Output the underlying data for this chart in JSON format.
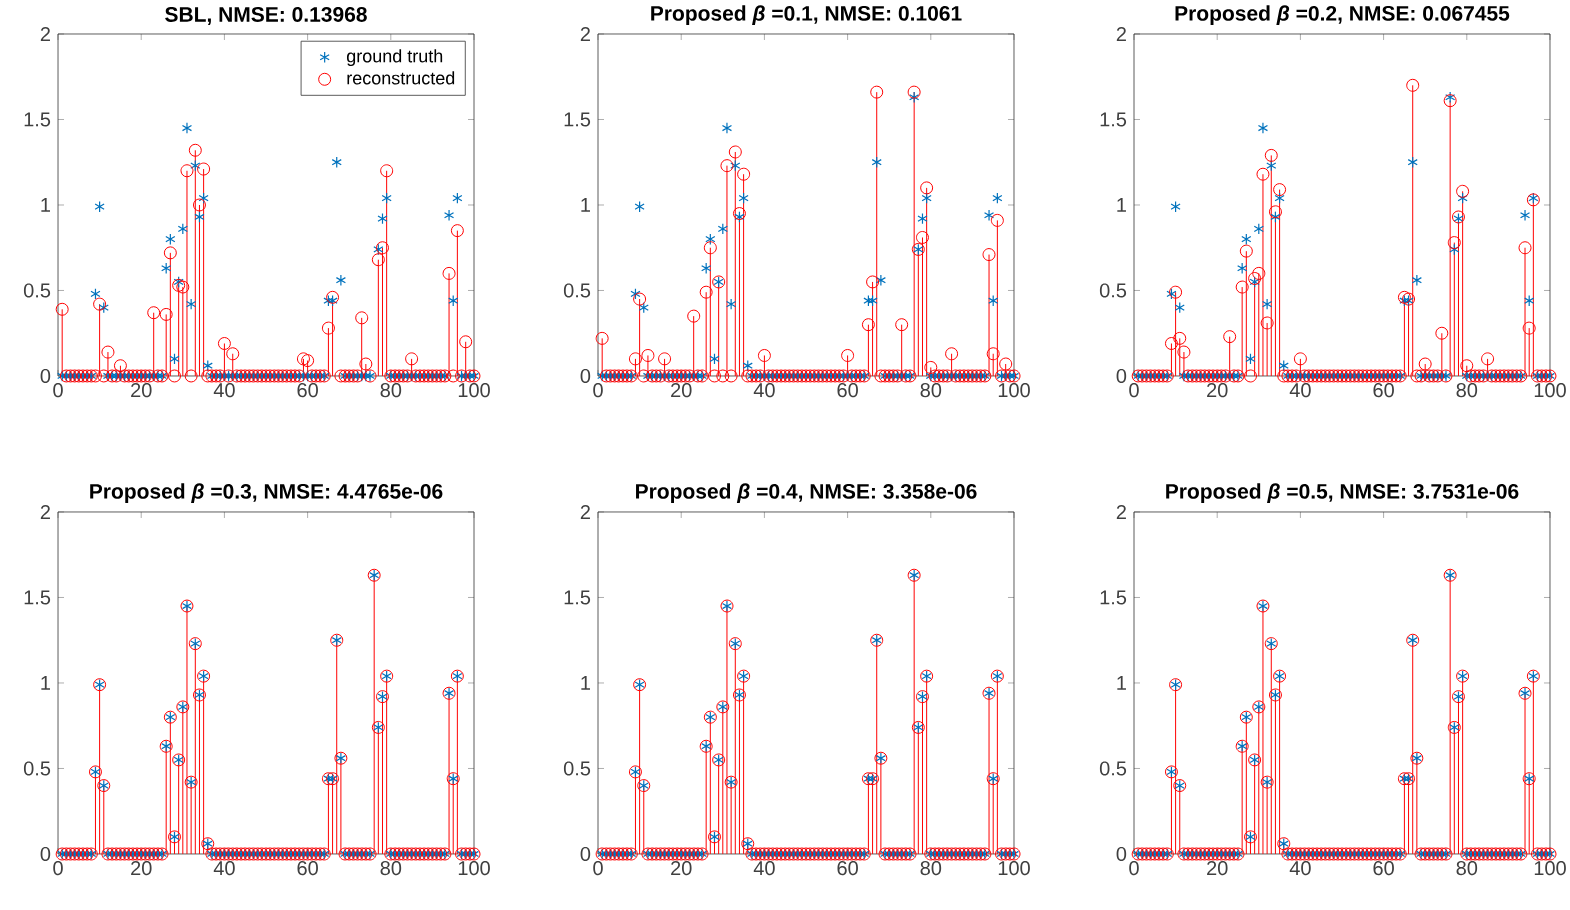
{
  "chart_data": [
    {
      "type": "scatter",
      "title": "**SBL, NMSE: 0.13968**",
      "legend": "top right",
      "xlim": [
        0,
        100
      ],
      "xticks": [
        0,
        20,
        40,
        60,
        80,
        100
      ],
      "ylim": [
        0,
        2
      ],
      "yticks": [
        0,
        0.5,
        1,
        1.5,
        2
      ],
      "x": [
        1,
        2,
        3,
        4,
        5,
        6,
        7,
        8,
        9,
        10,
        11,
        12,
        13,
        14,
        15,
        16,
        17,
        18,
        19,
        20,
        21,
        22,
        23,
        24,
        25,
        26,
        27,
        28,
        29,
        30,
        31,
        32,
        33,
        34,
        35,
        36,
        37,
        38,
        39,
        40,
        41,
        42,
        43,
        44,
        45,
        46,
        47,
        48,
        49,
        50,
        51,
        52,
        53,
        54,
        55,
        56,
        57,
        58,
        59,
        60,
        61,
        62,
        63,
        64,
        65,
        66,
        67,
        68,
        69,
        70,
        71,
        72,
        73,
        74,
        75,
        76,
        77,
        78,
        79,
        80,
        81,
        82,
        83,
        84,
        85,
        86,
        87,
        88,
        89,
        90,
        91,
        92,
        93,
        94,
        95,
        96,
        97,
        98,
        99,
        100
      ],
      "series": [
        {
          "name": "ground truth",
          "type": "scatter",
          "marker": "cross",
          "color": "#0072bd",
          "values": [
            0,
            0,
            0,
            0,
            0,
            0,
            0,
            0,
            0.48,
            0.99,
            0.4,
            0,
            0,
            0,
            0,
            0,
            0,
            0,
            0,
            0,
            0,
            0,
            0,
            0,
            0,
            0.63,
            0.8,
            0.1,
            0.55,
            0.86,
            1.45,
            0.42,
            1.23,
            0.93,
            1.04,
            0.06,
            0,
            0,
            0,
            0,
            0,
            0,
            0,
            0,
            0,
            0,
            0,
            0,
            0,
            0,
            0,
            0,
            0,
            0,
            0,
            0,
            0,
            0,
            0,
            0,
            0,
            0,
            0,
            0,
            0.44,
            0.44,
            1.25,
            0.56,
            0,
            0,
            0,
            0,
            0,
            0,
            0,
            null,
            0.74,
            0.92,
            1.04,
            0,
            0,
            0,
            0,
            0,
            0,
            0,
            0,
            0,
            0,
            0,
            0,
            0,
            0,
            0.94,
            0.44,
            1.04,
            0,
            0,
            0,
            0
          ]
        },
        {
          "name": "reconstructed",
          "type": "lollipop",
          "marker": "circle",
          "color": "#ff0000",
          "values": [
            0.39,
            0,
            0,
            0,
            0,
            0,
            0,
            0,
            0,
            0.42,
            0,
            0.14,
            0,
            0,
            0.06,
            0,
            0,
            0,
            0,
            0,
            0,
            0,
            0.37,
            0,
            0,
            0.36,
            0.72,
            0,
            0.53,
            0.52,
            1.2,
            0,
            1.32,
            1.0,
            1.21,
            0,
            0,
            0,
            0,
            0.19,
            0,
            0.13,
            0,
            0,
            0,
            0,
            0,
            0,
            0,
            0,
            0,
            0,
            0,
            0,
            0,
            0,
            0,
            0,
            0.1,
            0.09,
            0,
            0,
            0,
            0,
            0.28,
            0.46,
            null,
            0,
            0,
            0,
            0,
            0,
            0.34,
            0.07,
            0,
            null,
            0.68,
            0.75,
            1.2,
            0,
            0,
            0,
            0,
            0,
            0.1,
            0,
            0,
            0,
            0,
            0,
            0,
            0,
            0,
            0.6,
            0,
            0.85,
            0,
            0.2,
            0,
            0
          ]
        }
      ]
    },
    {
      "type": "scatter",
      "title": "**Proposed *β* =0.1, NMSE: 0.1061**",
      "xlim": [
        0,
        100
      ],
      "xticks": [
        0,
        20,
        40,
        60,
        80,
        100
      ],
      "ylim": [
        0,
        2
      ],
      "yticks": [
        0,
        0.5,
        1,
        1.5,
        2
      ],
      "x": [
        1,
        2,
        3,
        4,
        5,
        6,
        7,
        8,
        9,
        10,
        11,
        12,
        13,
        14,
        15,
        16,
        17,
        18,
        19,
        20,
        21,
        22,
        23,
        24,
        25,
        26,
        27,
        28,
        29,
        30,
        31,
        32,
        33,
        34,
        35,
        36,
        37,
        38,
        39,
        40,
        41,
        42,
        43,
        44,
        45,
        46,
        47,
        48,
        49,
        50,
        51,
        52,
        53,
        54,
        55,
        56,
        57,
        58,
        59,
        60,
        61,
        62,
        63,
        64,
        65,
        66,
        67,
        68,
        69,
        70,
        71,
        72,
        73,
        74,
        75,
        76,
        77,
        78,
        79,
        80,
        81,
        82,
        83,
        84,
        85,
        86,
        87,
        88,
        89,
        90,
        91,
        92,
        93,
        94,
        95,
        96,
        97,
        98,
        99,
        100
      ],
      "series": [
        {
          "type": "scatter",
          "marker": "cross",
          "color": "#0072bd",
          "values": [
            0,
            0,
            0,
            0,
            0,
            0,
            0,
            0,
            0.48,
            0.99,
            0.4,
            0,
            0,
            0,
            0,
            0,
            0,
            0,
            0,
            0,
            0,
            0,
            0,
            0,
            0,
            0.63,
            0.8,
            0.1,
            0.55,
            0.86,
            1.45,
            0.42,
            1.23,
            0.93,
            1.04,
            0.06,
            0,
            0,
            0,
            0,
            0,
            0,
            0,
            0,
            0,
            0,
            0,
            0,
            0,
            0,
            0,
            0,
            0,
            0,
            0,
            0,
            0,
            0,
            0,
            0,
            0,
            0,
            0,
            0,
            0.44,
            0.44,
            1.25,
            0.56,
            0,
            0,
            0,
            0,
            0,
            0,
            0,
            1.63,
            0.74,
            0.92,
            1.04,
            0,
            0,
            0,
            0,
            0,
            0,
            0,
            0,
            0,
            0,
            0,
            0,
            0,
            0,
            0.94,
            0.44,
            1.04,
            0,
            0,
            0,
            0
          ]
        },
        {
          "type": "lollipop",
          "marker": "circle",
          "color": "#ff0000",
          "values": [
            0.22,
            0,
            0,
            0,
            0,
            0,
            0,
            0,
            0.1,
            0.45,
            0,
            0.12,
            0,
            0,
            0,
            0.1,
            0,
            0,
            0,
            0,
            0,
            0,
            0.35,
            0,
            0,
            0.49,
            0.75,
            0,
            0.55,
            0,
            1.23,
            0,
            1.31,
            0.95,
            1.18,
            0,
            0,
            0,
            0,
            0.12,
            0,
            0,
            0,
            0,
            0,
            0,
            0,
            0,
            0,
            0,
            0,
            0,
            0,
            0,
            0,
            0,
            0,
            0,
            0,
            0.12,
            0,
            0,
            0,
            0,
            0.3,
            0.55,
            1.66,
            0,
            0,
            0,
            0,
            0,
            0.3,
            0,
            0,
            1.66,
            0.74,
            0.81,
            1.1,
            0.05,
            0,
            0,
            0,
            0,
            0.13,
            0,
            0,
            0,
            0,
            0,
            0,
            0,
            0,
            0.71,
            0.13,
            0.91,
            0,
            0.07,
            0,
            0
          ]
        }
      ]
    },
    {
      "type": "scatter",
      "title": "**Proposed *β* =0.2, NMSE: 0.067455**",
      "xlim": [
        0,
        100
      ],
      "xticks": [
        0,
        20,
        40,
        60,
        80,
        100
      ],
      "ylim": [
        0,
        2
      ],
      "yticks": [
        0,
        0.5,
        1,
        1.5,
        2
      ],
      "x": [
        1,
        2,
        3,
        4,
        5,
        6,
        7,
        8,
        9,
        10,
        11,
        12,
        13,
        14,
        15,
        16,
        17,
        18,
        19,
        20,
        21,
        22,
        23,
        24,
        25,
        26,
        27,
        28,
        29,
        30,
        31,
        32,
        33,
        34,
        35,
        36,
        37,
        38,
        39,
        40,
        41,
        42,
        43,
        44,
        45,
        46,
        47,
        48,
        49,
        50,
        51,
        52,
        53,
        54,
        55,
        56,
        57,
        58,
        59,
        60,
        61,
        62,
        63,
        64,
        65,
        66,
        67,
        68,
        69,
        70,
        71,
        72,
        73,
        74,
        75,
        76,
        77,
        78,
        79,
        80,
        81,
        82,
        83,
        84,
        85,
        86,
        87,
        88,
        89,
        90,
        91,
        92,
        93,
        94,
        95,
        96,
        97,
        98,
        99,
        100
      ],
      "series": [
        {
          "type": "scatter",
          "marker": "cross",
          "color": "#0072bd",
          "values": [
            0,
            0,
            0,
            0,
            0,
            0,
            0,
            0,
            0.48,
            0.99,
            0.4,
            0,
            0,
            0,
            0,
            0,
            0,
            0,
            0,
            0,
            0,
            0,
            0,
            0,
            0,
            0.63,
            0.8,
            0.1,
            0.55,
            0.86,
            1.45,
            0.42,
            1.23,
            0.93,
            1.04,
            0.06,
            0,
            0,
            0,
            0,
            0,
            0,
            0,
            0,
            0,
            0,
            0,
            0,
            0,
            0,
            0,
            0,
            0,
            0,
            0,
            0,
            0,
            0,
            0,
            0,
            0,
            0,
            0,
            0,
            0.44,
            0.44,
            1.25,
            0.56,
            0,
            0,
            0,
            0,
            0,
            0,
            0,
            1.63,
            0.74,
            0.92,
            1.04,
            0,
            0,
            0,
            0,
            0,
            0,
            0,
            0,
            0,
            0,
            0,
            0,
            0,
            0,
            0.94,
            0.44,
            1.04,
            0,
            0,
            0,
            0
          ]
        },
        {
          "type": "lollipop",
          "marker": "circle",
          "color": "#ff0000",
          "values": [
            0,
            0,
            0,
            0,
            0,
            0,
            0,
            0,
            0.19,
            0.49,
            0.22,
            0.14,
            0,
            0,
            0,
            0,
            0,
            0,
            0,
            0,
            0,
            0,
            0.23,
            0,
            0,
            0.52,
            0.73,
            0,
            0.57,
            0.6,
            1.18,
            0.31,
            1.29,
            0.96,
            1.09,
            0,
            0,
            0,
            0,
            0.1,
            0,
            0,
            0,
            0,
            0,
            0,
            0,
            0,
            0,
            0,
            0,
            0,
            0,
            0,
            0,
            0,
            0,
            0,
            0,
            0,
            0,
            0,
            0,
            0,
            0.46,
            0.45,
            1.7,
            0,
            0,
            0.07,
            0,
            0,
            0,
            0.25,
            0,
            1.61,
            0.78,
            0.93,
            1.08,
            0.06,
            0,
            0,
            0,
            0,
            0.1,
            0,
            0,
            0,
            0,
            0,
            0,
            0,
            0,
            0.75,
            0.28,
            1.03,
            0,
            0,
            0,
            0
          ]
        }
      ]
    },
    {
      "type": "scatter",
      "title": "**Proposed *β* =0.3, NMSE: 4.4765e-06**",
      "xlim": [
        0,
        100
      ],
      "xticks": [
        0,
        20,
        40,
        60,
        80,
        100
      ],
      "ylim": [
        0,
        2
      ],
      "yticks": [
        0,
        0.5,
        1,
        1.5,
        2
      ],
      "x": [
        1,
        2,
        3,
        4,
        5,
        6,
        7,
        8,
        9,
        10,
        11,
        12,
        13,
        14,
        15,
        16,
        17,
        18,
        19,
        20,
        21,
        22,
        23,
        24,
        25,
        26,
        27,
        28,
        29,
        30,
        31,
        32,
        33,
        34,
        35,
        36,
        37,
        38,
        39,
        40,
        41,
        42,
        43,
        44,
        45,
        46,
        47,
        48,
        49,
        50,
        51,
        52,
        53,
        54,
        55,
        56,
        57,
        58,
        59,
        60,
        61,
        62,
        63,
        64,
        65,
        66,
        67,
        68,
        69,
        70,
        71,
        72,
        73,
        74,
        75,
        76,
        77,
        78,
        79,
        80,
        81,
        82,
        83,
        84,
        85,
        86,
        87,
        88,
        89,
        90,
        91,
        92,
        93,
        94,
        95,
        96,
        97,
        98,
        99,
        100
      ],
      "series": [
        {
          "type": "scatter",
          "marker": "cross",
          "color": "#0072bd",
          "values": [
            0,
            0,
            0,
            0,
            0,
            0,
            0,
            0,
            0.48,
            0.99,
            0.4,
            0,
            0,
            0,
            0,
            0,
            0,
            0,
            0,
            0,
            0,
            0,
            0,
            0,
            0,
            0.63,
            0.8,
            0.1,
            0.55,
            0.86,
            1.45,
            0.42,
            1.23,
            0.93,
            1.04,
            0.06,
            0,
            0,
            0,
            0,
            0,
            0,
            0,
            0,
            0,
            0,
            0,
            0,
            0,
            0,
            0,
            0,
            0,
            0,
            0,
            0,
            0,
            0,
            0,
            0,
            0,
            0,
            0,
            0,
            0.44,
            0.44,
            1.25,
            0.56,
            0,
            0,
            0,
            0,
            0,
            0,
            0,
            1.63,
            0.74,
            0.92,
            1.04,
            0,
            0,
            0,
            0,
            0,
            0,
            0,
            0,
            0,
            0,
            0,
            0,
            0,
            0,
            0.94,
            0.44,
            1.04,
            0,
            0,
            0,
            0
          ]
        },
        {
          "type": "lollipop",
          "marker": "circle",
          "color": "#ff0000",
          "values": [
            0,
            0,
            0,
            0,
            0,
            0,
            0,
            0,
            0.48,
            0.99,
            0.4,
            0,
            0,
            0,
            0,
            0,
            0,
            0,
            0,
            0,
            0,
            0,
            0,
            0,
            0,
            0.63,
            0.8,
            0.1,
            0.55,
            0.86,
            1.45,
            0.42,
            1.23,
            0.93,
            1.04,
            0.06,
            0,
            0,
            0,
            0,
            0,
            0,
            0,
            0,
            0,
            0,
            0,
            0,
            0,
            0,
            0,
            0,
            0,
            0,
            0,
            0,
            0,
            0,
            0,
            0,
            0,
            0,
            0,
            0,
            0.44,
            0.44,
            1.25,
            0.56,
            0,
            0,
            0,
            0,
            0,
            0,
            0,
            1.63,
            0.74,
            0.92,
            1.04,
            0,
            0,
            0,
            0,
            0,
            0,
            0,
            0,
            0,
            0,
            0,
            0,
            0,
            0,
            0.94,
            0.44,
            1.04,
            0,
            0,
            0,
            0
          ]
        }
      ]
    },
    {
      "type": "scatter",
      "title": "**Proposed *β* =0.4, NMSE: 3.358e-06**",
      "xlim": [
        0,
        100
      ],
      "xticks": [
        0,
        20,
        40,
        60,
        80,
        100
      ],
      "ylim": [
        0,
        2
      ],
      "yticks": [
        0,
        0.5,
        1,
        1.5,
        2
      ],
      "x": [
        1,
        2,
        3,
        4,
        5,
        6,
        7,
        8,
        9,
        10,
        11,
        12,
        13,
        14,
        15,
        16,
        17,
        18,
        19,
        20,
        21,
        22,
        23,
        24,
        25,
        26,
        27,
        28,
        29,
        30,
        31,
        32,
        33,
        34,
        35,
        36,
        37,
        38,
        39,
        40,
        41,
        42,
        43,
        44,
        45,
        46,
        47,
        48,
        49,
        50,
        51,
        52,
        53,
        54,
        55,
        56,
        57,
        58,
        59,
        60,
        61,
        62,
        63,
        64,
        65,
        66,
        67,
        68,
        69,
        70,
        71,
        72,
        73,
        74,
        75,
        76,
        77,
        78,
        79,
        80,
        81,
        82,
        83,
        84,
        85,
        86,
        87,
        88,
        89,
        90,
        91,
        92,
        93,
        94,
        95,
        96,
        97,
        98,
        99,
        100
      ],
      "series": [
        {
          "type": "scatter",
          "marker": "cross",
          "color": "#0072bd",
          "values": [
            0,
            0,
            0,
            0,
            0,
            0,
            0,
            0,
            0.48,
            0.99,
            0.4,
            0,
            0,
            0,
            0,
            0,
            0,
            0,
            0,
            0,
            0,
            0,
            0,
            0,
            0,
            0.63,
            0.8,
            0.1,
            0.55,
            0.86,
            1.45,
            0.42,
            1.23,
            0.93,
            1.04,
            0.06,
            0,
            0,
            0,
            0,
            0,
            0,
            0,
            0,
            0,
            0,
            0,
            0,
            0,
            0,
            0,
            0,
            0,
            0,
            0,
            0,
            0,
            0,
            0,
            0,
            0,
            0,
            0,
            0,
            0.44,
            0.44,
            1.25,
            0.56,
            0,
            0,
            0,
            0,
            0,
            0,
            0,
            1.63,
            0.74,
            0.92,
            1.04,
            0,
            0,
            0,
            0,
            0,
            0,
            0,
            0,
            0,
            0,
            0,
            0,
            0,
            0,
            0.94,
            0.44,
            1.04,
            0,
            0,
            0,
            0
          ]
        },
        {
          "type": "lollipop",
          "marker": "circle",
          "color": "#ff0000",
          "values": [
            0,
            0,
            0,
            0,
            0,
            0,
            0,
            0,
            0.48,
            0.99,
            0.4,
            0,
            0,
            0,
            0,
            0,
            0,
            0,
            0,
            0,
            0,
            0,
            0,
            0,
            0,
            0.63,
            0.8,
            0.1,
            0.55,
            0.86,
            1.45,
            0.42,
            1.23,
            0.93,
            1.04,
            0.06,
            0,
            0,
            0,
            0,
            0,
            0,
            0,
            0,
            0,
            0,
            0,
            0,
            0,
            0,
            0,
            0,
            0,
            0,
            0,
            0,
            0,
            0,
            0,
            0,
            0,
            0,
            0,
            0,
            0.44,
            0.44,
            1.25,
            0.56,
            0,
            0,
            0,
            0,
            0,
            0,
            0,
            1.63,
            0.74,
            0.92,
            1.04,
            0,
            0,
            0,
            0,
            0,
            0,
            0,
            0,
            0,
            0,
            0,
            0,
            0,
            0,
            0.94,
            0.44,
            1.04,
            0,
            0,
            0,
            0
          ]
        }
      ]
    },
    {
      "type": "scatter",
      "title": "**Proposed *β* =0.5, NMSE: 3.7531e-06**",
      "xlim": [
        0,
        100
      ],
      "xticks": [
        0,
        20,
        40,
        60,
        80,
        100
      ],
      "ylim": [
        0,
        2
      ],
      "yticks": [
        0,
        0.5,
        1,
        1.5,
        2
      ],
      "x": [
        1,
        2,
        3,
        4,
        5,
        6,
        7,
        8,
        9,
        10,
        11,
        12,
        13,
        14,
        15,
        16,
        17,
        18,
        19,
        20,
        21,
        22,
        23,
        24,
        25,
        26,
        27,
        28,
        29,
        30,
        31,
        32,
        33,
        34,
        35,
        36,
        37,
        38,
        39,
        40,
        41,
        42,
        43,
        44,
        45,
        46,
        47,
        48,
        49,
        50,
        51,
        52,
        53,
        54,
        55,
        56,
        57,
        58,
        59,
        60,
        61,
        62,
        63,
        64,
        65,
        66,
        67,
        68,
        69,
        70,
        71,
        72,
        73,
        74,
        75,
        76,
        77,
        78,
        79,
        80,
        81,
        82,
        83,
        84,
        85,
        86,
        87,
        88,
        89,
        90,
        91,
        92,
        93,
        94,
        95,
        96,
        97,
        98,
        99,
        100
      ],
      "series": [
        {
          "type": "scatter",
          "marker": "cross",
          "color": "#0072bd",
          "values": [
            0,
            0,
            0,
            0,
            0,
            0,
            0,
            0,
            0.48,
            0.99,
            0.4,
            0,
            0,
            0,
            0,
            0,
            0,
            0,
            0,
            0,
            0,
            0,
            0,
            0,
            0,
            0.63,
            0.8,
            0.1,
            0.55,
            0.86,
            1.45,
            0.42,
            1.23,
            0.93,
            1.04,
            0.06,
            0,
            0,
            0,
            0,
            0,
            0,
            0,
            0,
            0,
            0,
            0,
            0,
            0,
            0,
            0,
            0,
            0,
            0,
            0,
            0,
            0,
            0,
            0,
            0,
            0,
            0,
            0,
            0,
            0.44,
            0.44,
            1.25,
            0.56,
            0,
            0,
            0,
            0,
            0,
            0,
            0,
            1.63,
            0.74,
            0.92,
            1.04,
            0,
            0,
            0,
            0,
            0,
            0,
            0,
            0,
            0,
            0,
            0,
            0,
            0,
            0,
            0.94,
            0.44,
            1.04,
            0,
            0,
            0,
            0
          ]
        },
        {
          "type": "lollipop",
          "marker": "circle",
          "color": "#ff0000",
          "values": [
            0,
            0,
            0,
            0,
            0,
            0,
            0,
            0,
            0.48,
            0.99,
            0.4,
            0,
            0,
            0,
            0,
            0,
            0,
            0,
            0,
            0,
            0,
            0,
            0,
            0,
            0,
            0.63,
            0.8,
            0.1,
            0.55,
            0.86,
            1.45,
            0.42,
            1.23,
            0.93,
            1.04,
            0.06,
            0,
            0,
            0,
            0,
            0,
            0,
            0,
            0,
            0,
            0,
            0,
            0,
            0,
            0,
            0,
            0,
            0,
            0,
            0,
            0,
            0,
            0,
            0,
            0,
            0,
            0,
            0,
            0,
            0.44,
            0.44,
            1.25,
            0.56,
            0,
            0,
            0,
            0,
            0,
            0,
            0,
            1.63,
            0.74,
            0.92,
            1.04,
            0,
            0,
            0,
            0,
            0,
            0,
            0,
            0,
            0,
            0,
            0,
            0,
            0,
            0,
            0.94,
            0.44,
            1.04,
            0,
            0,
            0,
            0
          ]
        }
      ]
    }
  ]
}
